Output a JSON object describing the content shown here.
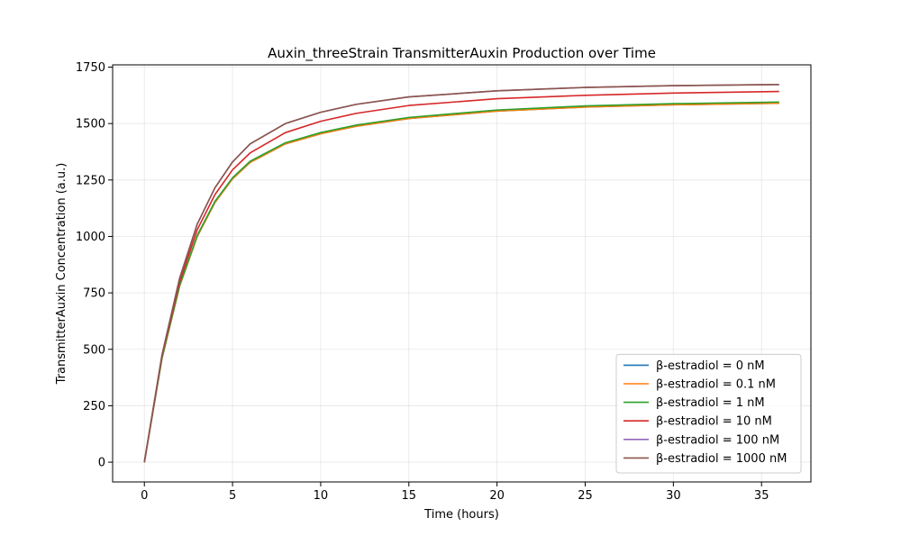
{
  "chart_data": {
    "type": "line",
    "title": "Auxin_threeStrain TransmitterAuxin Production over Time",
    "xlabel": "Time (hours)",
    "ylabel": "TransmitterAuxin Concentration (a.u.)",
    "xlim": [
      -1.8,
      37.8
    ],
    "ylim": [
      -87.5,
      1760
    ],
    "x_ticks": [
      0,
      5,
      10,
      15,
      20,
      25,
      30,
      35
    ],
    "y_ticks": [
      0,
      250,
      500,
      750,
      1000,
      1250,
      1500,
      1750
    ],
    "grid": true,
    "legend_position": "lower right",
    "x": [
      0,
      1,
      2,
      3,
      4,
      5,
      6,
      8,
      10,
      12,
      15,
      20,
      25,
      30,
      36
    ],
    "series": [
      {
        "name": "β-estradiol = 0 nM",
        "color": "#1f77b4",
        "values": [
          0,
          460,
          780,
          1000,
          1150,
          1255,
          1328,
          1410,
          1455,
          1488,
          1522,
          1555,
          1573,
          1583,
          1590
        ]
      },
      {
        "name": "β-estradiol = 0.1 nM",
        "color": "#ff7f0e",
        "values": [
          0,
          460,
          780,
          1000,
          1150,
          1255,
          1328,
          1410,
          1455,
          1488,
          1522,
          1555,
          1573,
          1583,
          1590
        ]
      },
      {
        "name": "β-estradiol = 1 nM",
        "color": "#2ca02c",
        "values": [
          0,
          462,
          784,
          1005,
          1155,
          1260,
          1333,
          1415,
          1460,
          1493,
          1527,
          1560,
          1578,
          1588,
          1595
        ]
      },
      {
        "name": "β-estradiol = 10 nM",
        "color": "#d62728",
        "values": [
          0,
          470,
          800,
          1030,
          1185,
          1295,
          1370,
          1460,
          1510,
          1545,
          1580,
          1610,
          1625,
          1635,
          1642
        ]
      },
      {
        "name": "β-estradiol = 100 nM",
        "color": "#9467bd",
        "values": [
          0,
          475,
          815,
          1055,
          1215,
          1330,
          1410,
          1500,
          1550,
          1585,
          1618,
          1645,
          1660,
          1668,
          1673
        ]
      },
      {
        "name": "β-estradiol = 1000 nM",
        "color": "#8c564b",
        "values": [
          0,
          475,
          815,
          1055,
          1215,
          1330,
          1410,
          1500,
          1550,
          1585,
          1618,
          1645,
          1660,
          1668,
          1673
        ]
      }
    ]
  }
}
